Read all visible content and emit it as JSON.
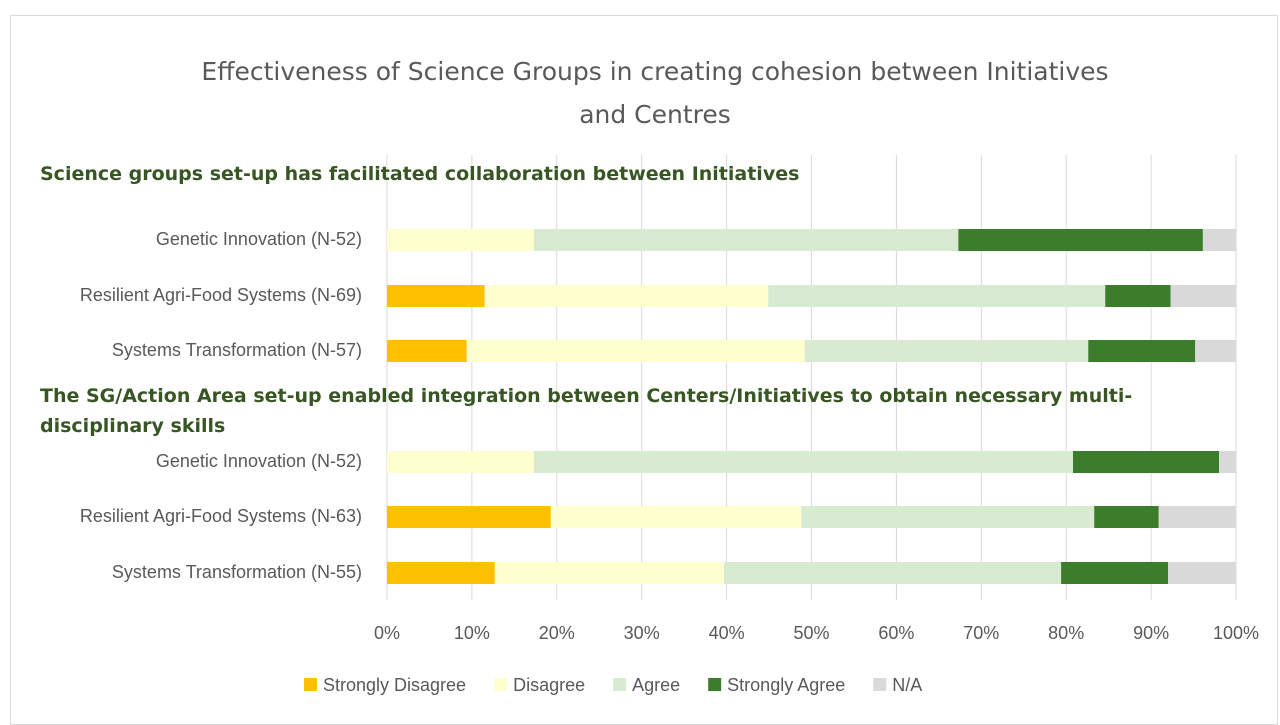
{
  "chart_data": {
    "type": "bar",
    "orientation": "horizontal",
    "stacked": true,
    "title": "Effectiveness of Science Groups in creating cohesion between Initiatives and Centres",
    "groups": [
      {
        "title": "Science groups set-up has facilitated collaboration between Initiatives",
        "categories": [
          "Genetic Innovation (N-52)",
          "Resilient Agri-Food Systems (N-69)",
          "Systems Transformation (N-57)"
        ]
      },
      {
        "title": "The SG/Action Area set-up enabled integration between Centers/Initiatives to obtain necessary multi-disciplinary skills",
        "categories": [
          "Genetic Innovation (N-52)",
          "Resilient Agri-Food Systems (N-63)",
          "Systems Transformation (N-55)"
        ]
      }
    ],
    "series": [
      {
        "name": "Strongly Disagree",
        "color": "#ffc000",
        "values": [
          [
            0,
            11.5,
            9.4
          ],
          [
            0,
            19.3,
            12.7
          ]
        ]
      },
      {
        "name": "Disagree",
        "color": "#fffecf",
        "values": [
          [
            17.3,
            33.4,
            39.8
          ],
          [
            17.3,
            29.5,
            27.0
          ]
        ]
      },
      {
        "name": "Agree",
        "color": "#d8ebd2",
        "values": [
          [
            50.0,
            39.7,
            33.4
          ],
          [
            63.5,
            34.5,
            39.7
          ]
        ]
      },
      {
        "name": "Strongly Agree",
        "color": "#3b7d2b",
        "values": [
          [
            28.8,
            7.7,
            12.6
          ],
          [
            17.2,
            7.6,
            12.6
          ]
        ]
      },
      {
        "name": "N/A",
        "color": "#d9d9d9",
        "values": [
          [
            3.9,
            7.7,
            4.8
          ],
          [
            2.0,
            9.1,
            8.0
          ]
        ]
      }
    ],
    "xlim": [
      0,
      100
    ],
    "xticks": [
      {
        "value": 0,
        "label": "0%"
      },
      {
        "value": 10,
        "label": "10%"
      },
      {
        "value": 20,
        "label": "20%"
      },
      {
        "value": 30,
        "label": "30%"
      },
      {
        "value": 40,
        "label": "40%"
      },
      {
        "value": 50,
        "label": "50%"
      },
      {
        "value": 60,
        "label": "60%"
      },
      {
        "value": 70,
        "label": "70%"
      },
      {
        "value": 80,
        "label": "80%"
      },
      {
        "value": 90,
        "label": "90%"
      },
      {
        "value": 100,
        "label": "100%"
      }
    ],
    "grid": true,
    "legend": "bottom"
  }
}
